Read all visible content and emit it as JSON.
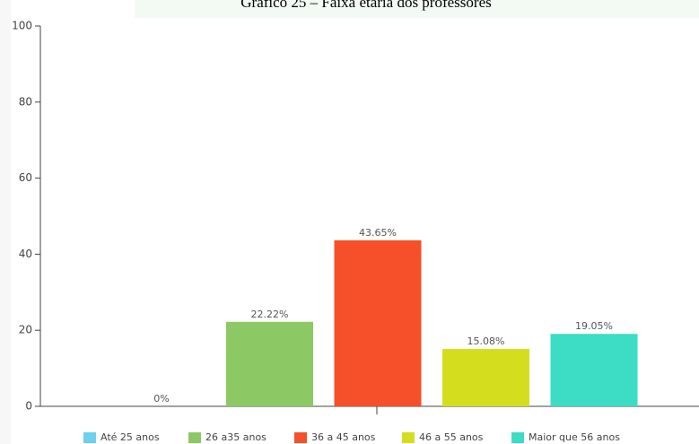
{
  "chart_data": {
    "type": "bar",
    "title": "Gráfico 25 – Faixa etária dos professores",
    "series": [
      {
        "name": "Até 25 anos",
        "color": "#6dd0ee",
        "values": [
          0
        ],
        "value_labels": [
          "0%"
        ]
      },
      {
        "name": "26 a35 anos",
        "color": "#8cc965",
        "values": [
          22.22
        ],
        "value_labels": [
          "22.22%"
        ]
      },
      {
        "name": "36 a 45 anos",
        "color": "#f5502a",
        "values": [
          43.65
        ],
        "value_labels": [
          "43.65%"
        ]
      },
      {
        "name": "46 a 55 anos",
        "color": "#d4de1f",
        "values": [
          15.08
        ],
        "value_labels": [
          "15.08%"
        ]
      },
      {
        "name": "Maior que 56 anos",
        "color": "#3ddcc5",
        "values": [
          19.05
        ],
        "value_labels": [
          "19.05%"
        ]
      }
    ],
    "ylim": [
      0,
      100
    ],
    "yticks": [
      0,
      20,
      40,
      60,
      80,
      100
    ]
  }
}
